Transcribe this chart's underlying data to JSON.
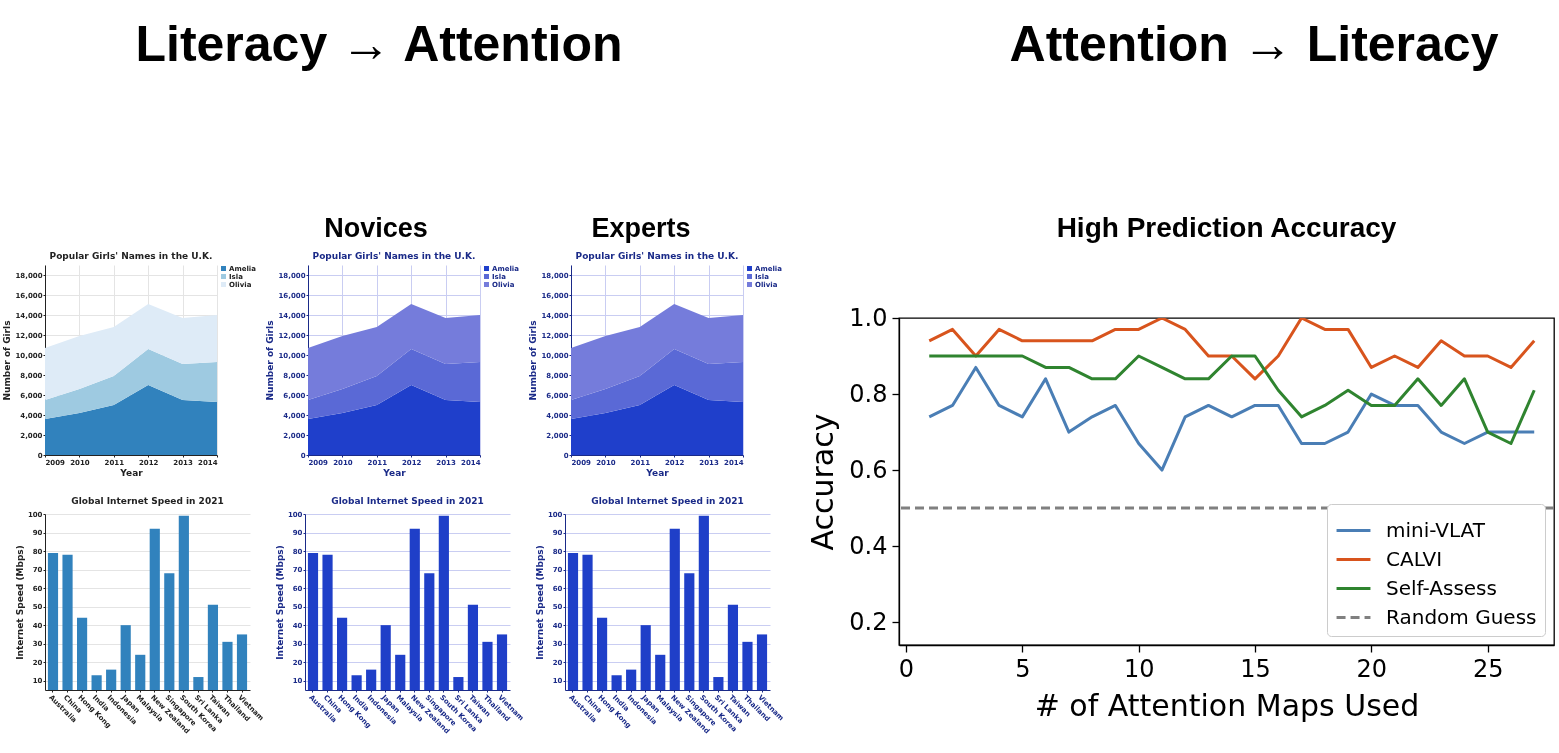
{
  "chart_data": [
    {
      "type": "other",
      "annotations": [
        "Literacy → Attention",
        "Attention → Literacy",
        "Novices",
        "Experts"
      ]
    },
    {
      "type": "area",
      "title": "Popular Girls' Names in the U.K.",
      "xlabel": "Year",
      "ylabel": "Number of Girls",
      "x": [
        2009,
        2010,
        2011,
        2012,
        2013,
        2014
      ],
      "stacked": true,
      "series": [
        {
          "name": "Amelia",
          "color": "#3182bd",
          "values": [
            3600,
            4200,
            5000,
            7000,
            5500,
            5300
          ]
        },
        {
          "name": "Isla",
          "color": "#9ecae1",
          "values": [
            1900,
            2400,
            2900,
            3600,
            3600,
            4000
          ]
        },
        {
          "name": "Olivia",
          "color": "#deebf7",
          "values": [
            5200,
            5300,
            4900,
            4500,
            4600,
            4700
          ]
        }
      ],
      "xlim": [
        2009,
        2014
      ],
      "xticks": [
        2009,
        2010,
        2011,
        2012,
        2013,
        2014
      ],
      "ylim": [
        0,
        19000
      ],
      "yticks": [
        0,
        {
          "value": 2000,
          "label": "2,000"
        },
        {
          "value": 4000,
          "label": "4,000"
        },
        {
          "value": 6000,
          "label": "6,000"
        },
        {
          "value": 8000,
          "label": "8,000"
        },
        {
          "value": 10000,
          "label": "10,000"
        },
        {
          "value": 12000,
          "label": "12,000"
        },
        {
          "value": 14000,
          "label": "14,000"
        },
        {
          "value": 16000,
          "label": "16,000"
        },
        {
          "value": 18000,
          "label": "18,000"
        }
      ],
      "grid": true,
      "legend": "top right"
    },
    {
      "type": "area",
      "title": "Popular Girls' Names in the U.K.",
      "xlabel": "Year",
      "ylabel": "Number of Girls",
      "x": [
        2009,
        2010,
        2011,
        2012,
        2013,
        2014
      ],
      "stacked": true,
      "series": [
        {
          "name": "Amelia",
          "color": "#1f3fcb",
          "values": [
            3600,
            4200,
            5000,
            7000,
            5500,
            5300
          ]
        },
        {
          "name": "Isla",
          "color": "#5a69d6",
          "values": [
            1900,
            2400,
            2900,
            3600,
            3600,
            4000
          ]
        },
        {
          "name": "Olivia",
          "color": "#757cdb",
          "values": [
            5200,
            5300,
            4900,
            4500,
            4600,
            4700
          ]
        }
      ],
      "xlim": [
        2009,
        2014
      ],
      "xticks": [
        2009,
        2010,
        2011,
        2012,
        2013,
        2014
      ],
      "ylim": [
        0,
        19000
      ],
      "yticks": [
        0,
        {
          "value": 2000,
          "label": "2,000"
        },
        {
          "value": 4000,
          "label": "4,000"
        },
        {
          "value": 6000,
          "label": "6,000"
        },
        {
          "value": 8000,
          "label": "8,000"
        },
        {
          "value": 10000,
          "label": "10,000"
        },
        {
          "value": 12000,
          "label": "12,000"
        },
        {
          "value": 14000,
          "label": "14,000"
        },
        {
          "value": 16000,
          "label": "16,000"
        },
        {
          "value": 18000,
          "label": "18,000"
        }
      ],
      "grid": true,
      "legend": "top right"
    },
    {
      "type": "area",
      "title": "Popular Girls' Names in the U.K.",
      "xlabel": "Year",
      "ylabel": "Number of Girls",
      "x": [
        2009,
        2010,
        2011,
        2012,
        2013,
        2014
      ],
      "stacked": true,
      "series": [
        {
          "name": "Amelia",
          "color": "#1f3fcb",
          "values": [
            3600,
            4200,
            5000,
            7000,
            5500,
            5300
          ]
        },
        {
          "name": "Isla",
          "color": "#5a69d6",
          "values": [
            1900,
            2400,
            2900,
            3600,
            3600,
            4000
          ]
        },
        {
          "name": "Olivia",
          "color": "#757cdb",
          "values": [
            5200,
            5300,
            4900,
            4500,
            4600,
            4700
          ]
        }
      ],
      "xlim": [
        2009,
        2014
      ],
      "xticks": [
        2009,
        2010,
        2011,
        2012,
        2013,
        2014
      ],
      "ylim": [
        0,
        19000
      ],
      "yticks": [
        0,
        {
          "value": 2000,
          "label": "2,000"
        },
        {
          "value": 4000,
          "label": "4,000"
        },
        {
          "value": 6000,
          "label": "6,000"
        },
        {
          "value": 8000,
          "label": "8,000"
        },
        {
          "value": 10000,
          "label": "10,000"
        },
        {
          "value": 12000,
          "label": "12,000"
        },
        {
          "value": 14000,
          "label": "14,000"
        },
        {
          "value": 16000,
          "label": "16,000"
        },
        {
          "value": 18000,
          "label": "18,000"
        }
      ],
      "grid": true,
      "legend": "top right"
    },
    {
      "type": "bar",
      "title": "Global Internet Speed in 2021",
      "ylabel": "Internet Speed (Mbps)",
      "categories": [
        "Australia",
        "China",
        "Hong Kong",
        "India",
        "Indonesia",
        "Japan",
        "Malaysia",
        "New Zealand",
        "Singapore",
        "South Korea",
        "Sri Lanka",
        "Taiwan",
        "Thailand",
        "Vietnam"
      ],
      "values": [
        79,
        78,
        44,
        13,
        16,
        40,
        24,
        92,
        68,
        99,
        12,
        51,
        31,
        35
      ],
      "color": "#3182bd",
      "ylim": [
        5,
        100
      ],
      "yticks": [
        10,
        20,
        30,
        40,
        50,
        60,
        70,
        80,
        90,
        100
      ],
      "grid": "y"
    },
    {
      "type": "bar",
      "title": "Global Internet Speed in 2021",
      "ylabel": "Internet Speed (Mbps)",
      "categories": [
        "Australia",
        "China",
        "Hong Kong",
        "India",
        "Indonesia",
        "Japan",
        "Malaysia",
        "New Zealand",
        "Singapore",
        "South Korea",
        "Sri Lanka",
        "Taiwan",
        "Thailand",
        "Vietnam"
      ],
      "values": [
        79,
        78,
        44,
        13,
        16,
        40,
        24,
        92,
        68,
        99,
        12,
        51,
        31,
        35
      ],
      "color": "#1f3fc8",
      "ylim": [
        5,
        100
      ],
      "yticks": [
        10,
        20,
        30,
        40,
        50,
        60,
        70,
        80,
        90,
        100
      ],
      "grid": "y"
    },
    {
      "type": "bar",
      "title": "Global Internet Speed in 2021",
      "ylabel": "Internet Speed (Mbps)",
      "categories": [
        "Australia",
        "China",
        "Hong Kong",
        "India",
        "Indonesia",
        "Japan",
        "Malaysia",
        "New Zealand",
        "Singapore",
        "South Korea",
        "Sri Lanka",
        "Taiwan",
        "Thailand",
        "Vietnam"
      ],
      "values": [
        79,
        78,
        44,
        13,
        16,
        40,
        24,
        92,
        68,
        99,
        12,
        51,
        31,
        35
      ],
      "color": "#1f3fc8",
      "ylim": [
        5,
        100
      ],
      "yticks": [
        10,
        20,
        30,
        40,
        50,
        60,
        70,
        80,
        90,
        100
      ],
      "grid": "y"
    },
    {
      "type": "line",
      "title": "High Prediction Accuracy",
      "xlabel": "# of Attention Maps Used",
      "ylabel": "Accuracy",
      "x": [
        1,
        2,
        3,
        4,
        5,
        6,
        7,
        8,
        9,
        10,
        11,
        12,
        13,
        14,
        15,
        16,
        17,
        18,
        19,
        20,
        21,
        22,
        23,
        24,
        25,
        26,
        27
      ],
      "series": [
        {
          "name": "mini-VLAT",
          "color": "#4a7eb5",
          "values": [
            0.74,
            0.77,
            0.87,
            0.77,
            0.74,
            0.84,
            0.7,
            0.74,
            0.77,
            0.67,
            0.6,
            0.74,
            0.77,
            0.74,
            0.77,
            0.77,
            0.67,
            0.67,
            0.7,
            0.8,
            0.77,
            0.77,
            0.7,
            0.67,
            0.7,
            0.7,
            0.7
          ]
        },
        {
          "name": "CALVI",
          "color": "#d8541d",
          "values": [
            0.94,
            0.97,
            0.9,
            0.97,
            0.94,
            0.94,
            0.94,
            0.94,
            0.97,
            0.97,
            1.0,
            0.97,
            0.9,
            0.9,
            0.84,
            0.9,
            1.0,
            0.97,
            0.97,
            0.87,
            0.9,
            0.87,
            0.94,
            0.9,
            0.9,
            0.87,
            0.94
          ]
        },
        {
          "name": "Self-Assess",
          "color": "#2f842f",
          "values": [
            0.9,
            0.9,
            0.9,
            0.9,
            0.9,
            0.87,
            0.87,
            0.84,
            0.84,
            0.9,
            0.87,
            0.84,
            0.84,
            0.9,
            0.9,
            0.81,
            0.74,
            0.77,
            0.81,
            0.77,
            0.77,
            0.84,
            0.77,
            0.84,
            0.7,
            0.67,
            0.81
          ]
        }
      ],
      "ref_lines": [
        {
          "axis": "y",
          "value": 0.5,
          "label": "Random Guess",
          "color": "#808080",
          "line_style": "dashed"
        }
      ],
      "xlim": [
        -0.3,
        27.85
      ],
      "xticks": [
        0,
        5,
        10,
        15,
        20,
        25
      ],
      "ylim": [
        0.14,
        1.0
      ],
      "yticks": [
        0.2,
        0.4,
        0.6,
        0.8,
        {
          "value": 1,
          "label": "1.0"
        }
      ],
      "line_style": "solid",
      "legend": "bottom right"
    }
  ]
}
